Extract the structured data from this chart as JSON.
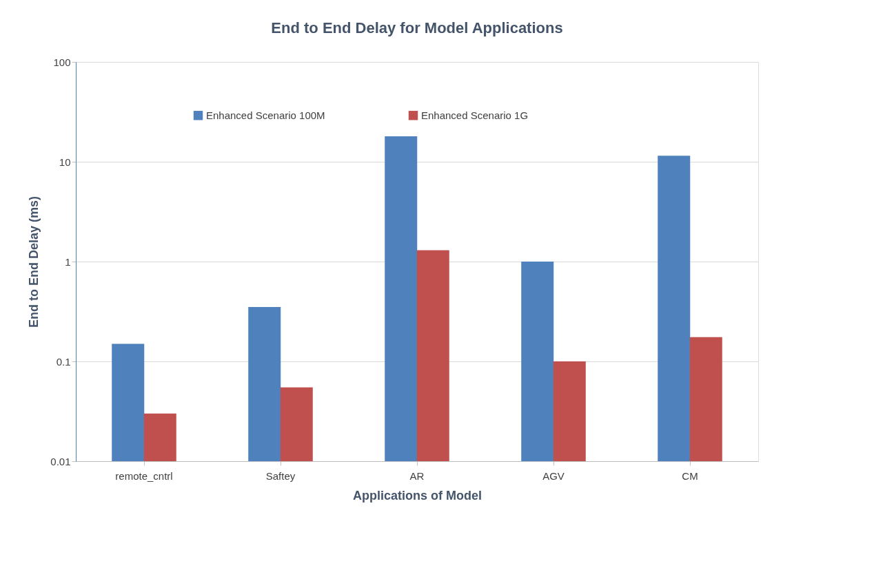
{
  "chart_data": {
    "type": "bar",
    "title": "End to End Delay for Model Applications",
    "xlabel": "Applications of Model",
    "ylabel": "End to End Delay (ms)",
    "categories": [
      "remote_cntrl",
      "Saftey",
      "AR",
      "AGV",
      "CM"
    ],
    "series": [
      {
        "name": "Enhanced Scenario 100M",
        "color": "#4f81bd",
        "values": [
          0.15,
          0.35,
          18,
          1,
          11.5
        ]
      },
      {
        "name": "Enhanced Scenario 1G",
        "color": "#c0504d",
        "values": [
          0.03,
          0.055,
          1.3,
          0.1,
          0.175
        ]
      }
    ],
    "log": true,
    "ylim": [
      0.01,
      100
    ],
    "yticks": [
      0.01,
      0.1,
      1,
      10,
      100
    ],
    "grid": "y",
    "legend": "top"
  }
}
